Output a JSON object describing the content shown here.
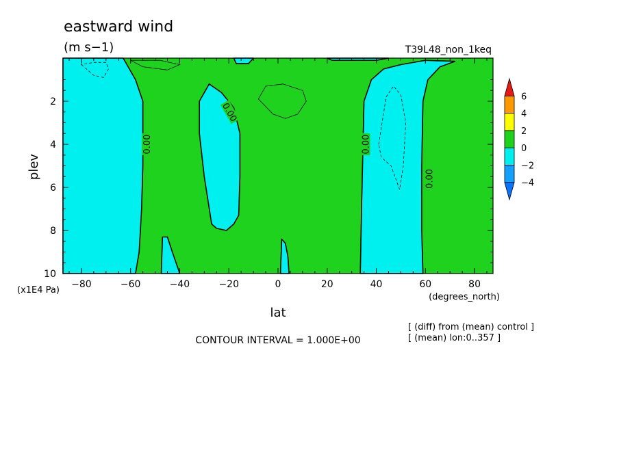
{
  "chart_data": {
    "type": "heatmap",
    "title": "eastward wind",
    "units": "(m s−1)",
    "run_label": "T39L48_non_1keq",
    "xlabel": "lat",
    "x_units": "(degrees_north)",
    "ylabel": "plev",
    "y_units": "(x1E4 Pa)",
    "xlim": [
      -87.5,
      87.5
    ],
    "ylim": [
      0,
      10
    ],
    "y_inverted": true,
    "x_ticks": [
      -80,
      -60,
      -40,
      -20,
      0,
      20,
      40,
      60,
      80
    ],
    "y_ticks": [
      2,
      4,
      6,
      8,
      10
    ],
    "contour_interval_text": "CONTOUR INTERVAL = 1.000E+00",
    "notes": [
      "[ (diff) from (mean) control ]",
      "[ (mean) lon:0..357 ]"
    ],
    "contour_labels": [
      {
        "text": "0.00",
        "lat": -53.5,
        "plev": 4.0,
        "angle": -90
      },
      {
        "text": "0.00",
        "lat": -19.5,
        "plev": 2.5,
        "angle": 60
      },
      {
        "text": "0.00",
        "lat": 35.5,
        "plev": 4.0,
        "angle": -90
      },
      {
        "text": "0.00",
        "lat": 61.5,
        "plev": 5.6,
        "angle": -90
      }
    ],
    "colorbar": {
      "levels": [
        -4,
        -2,
        0,
        2,
        4,
        6
      ],
      "colors": [
        "#0a73ff",
        "#14a0ff",
        "#00f0f0",
        "#1ed21e",
        "#ffff00",
        "#ff9900",
        "#e61919"
      ],
      "labels": [
        "6",
        "4",
        "2",
        "0",
        "−2",
        "−4"
      ]
    },
    "fill_colors": {
      "green": "#1ed21e",
      "cyan": "#00f0f0",
      "blue": "#14a0ff"
    },
    "regions": [
      {
        "name": "west-cyan",
        "color": "cyan",
        "pts": [
          [
            -87.5,
            0
          ],
          [
            -63,
            0
          ],
          [
            -58,
            1
          ],
          [
            -55,
            2
          ],
          [
            -55,
            5
          ],
          [
            -55.5,
            7
          ],
          [
            -56.5,
            9
          ],
          [
            -58,
            10
          ],
          [
            -87.5,
            10
          ]
        ]
      },
      {
        "name": "west-cyan-inner",
        "color": "cyan",
        "pts": [
          [
            -47.5,
            10
          ],
          [
            -47,
            8.3
          ],
          [
            -45,
            8.3
          ],
          [
            -43,
            9
          ],
          [
            -40,
            10
          ]
        ]
      },
      {
        "name": "south-tropic-cyan",
        "color": "cyan",
        "pts": [
          [
            -32,
            2
          ],
          [
            -28,
            1.2
          ],
          [
            -23,
            1.6
          ],
          [
            -18,
            2.3
          ],
          [
            -15.5,
            3.5
          ],
          [
            -15.5,
            5.5
          ],
          [
            -16,
            7.3
          ],
          [
            -18,
            7.7
          ],
          [
            -21,
            8.0
          ],
          [
            -25,
            7.9
          ],
          [
            -27,
            7.7
          ],
          [
            -30,
            5.5
          ],
          [
            -32,
            3.5
          ]
        ]
      },
      {
        "name": "equator-cyan",
        "color": "cyan",
        "pts": [
          [
            1,
            10
          ],
          [
            1.5,
            8.4
          ],
          [
            3,
            8.6
          ],
          [
            4,
            9.2
          ],
          [
            4.5,
            10
          ]
        ]
      },
      {
        "name": "east-cyan",
        "color": "cyan",
        "pts": [
          [
            33.5,
            10
          ],
          [
            34,
            7
          ],
          [
            34.5,
            4.5
          ],
          [
            35,
            2
          ],
          [
            38,
            1
          ],
          [
            43,
            0.5
          ],
          [
            50,
            0.3
          ],
          [
            60,
            0.1
          ],
          [
            72,
            0.15
          ],
          [
            66,
            0.4
          ],
          [
            61,
            1
          ],
          [
            59,
            2
          ],
          [
            58.5,
            5
          ],
          [
            58.5,
            8
          ],
          [
            59,
            10
          ]
        ]
      },
      {
        "name": "top-cyan-small",
        "color": "cyan",
        "pts": [
          [
            -18,
            0
          ],
          [
            -10,
            0
          ],
          [
            -12,
            0.25
          ],
          [
            -17,
            0.25
          ]
        ]
      },
      {
        "name": "top-cyan-strip",
        "color": "cyan",
        "pts": [
          [
            20,
            0
          ],
          [
            45,
            0
          ],
          [
            40,
            0.1
          ],
          [
            22,
            0.1
          ]
        ]
      }
    ],
    "dashed_contours": [
      [
        [
          -80,
          0.3
        ],
        [
          -75,
          0.8
        ],
        [
          -71,
          0.9
        ],
        [
          -69,
          0.5
        ],
        [
          -70,
          0.2
        ],
        [
          -75,
          0.2
        ]
      ],
      [
        [
          41,
          4
        ],
        [
          44,
          1.8
        ],
        [
          47,
          1.3
        ],
        [
          50,
          1.7
        ],
        [
          52,
          3
        ],
        [
          51,
          5
        ],
        [
          49.5,
          6.1
        ],
        [
          46,
          5
        ],
        [
          42,
          4.6
        ]
      ]
    ],
    "solid_contours": [
      [
        [
          -5,
          1.3
        ],
        [
          2,
          1.2
        ],
        [
          10,
          1.5
        ],
        [
          11.5,
          2.0
        ],
        [
          8,
          2.6
        ],
        [
          3,
          2.8
        ],
        [
          -2,
          2.6
        ],
        [
          -8,
          1.9
        ]
      ],
      [
        [
          -60,
          0.1
        ],
        [
          -55,
          0.4
        ],
        [
          -45,
          0.55
        ],
        [
          -40,
          0.3
        ],
        [
          -48,
          0.1
        ]
      ]
    ]
  }
}
